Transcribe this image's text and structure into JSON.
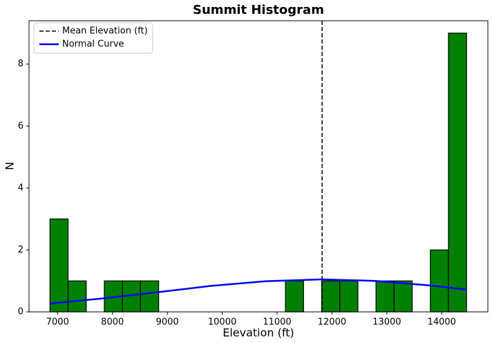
{
  "chart_data": {
    "type": "histogram",
    "title": "Summit Histogram",
    "x_label": "Elevation (ft)",
    "y_label": "N",
    "bins": [
      6862,
      7192,
      7522,
      7852,
      8182,
      8512,
      8842,
      9172,
      9502,
      9832,
      10162,
      10492,
      10822,
      11152,
      11482,
      11812,
      12142,
      12472,
      12802,
      13132,
      13462,
      13792,
      14122,
      14452
    ],
    "values": [
      3,
      1,
      0,
      1,
      1,
      1,
      0,
      0,
      0,
      0,
      0,
      0,
      0,
      1,
      0,
      1,
      1,
      0,
      1,
      1,
      0,
      2,
      9
    ],
    "color": "#008000",
    "mean_line": {
      "name": "Mean Elevation (ft)",
      "x": 11820,
      "color": "#000000"
    },
    "curve": {
      "name": "Normal Curve",
      "color": "#0000ff",
      "x": [
        6862,
        7800,
        8800,
        9800,
        10800,
        11820,
        12800,
        13800,
        14452
      ],
      "y": [
        0.27,
        0.43,
        0.63,
        0.84,
        0.99,
        1.05,
        1.0,
        0.85,
        0.72
      ]
    },
    "xlim": [
      6480,
      14840
    ],
    "ylim": [
      0,
      9.4
    ],
    "xticks": [
      7000,
      8000,
      9000,
      10000,
      11000,
      12000,
      13000,
      14000
    ],
    "yticks": [
      0,
      2,
      4,
      6,
      8
    ],
    "legend": "upper left"
  }
}
